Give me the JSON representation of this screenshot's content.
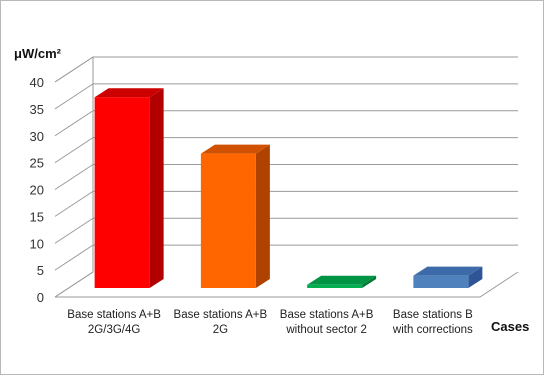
{
  "chart_data": {
    "type": "bar",
    "ylabel": "μW/cm²",
    "xlabel": "Cases",
    "ylim": [
      0,
      40
    ],
    "yticks": [
      0,
      5,
      10,
      15,
      20,
      25,
      30,
      35,
      40
    ],
    "grid": true,
    "categories": [
      [
        "Base stations A+B",
        "2G/3G/4G"
      ],
      [
        "Base stations A+B",
        "2G"
      ],
      [
        "Base stations A+B",
        "without sector 2"
      ],
      [
        "Base stations B",
        "with corrections"
      ]
    ],
    "values": [
      35.5,
      25.0,
      0.6,
      2.3
    ],
    "colors": [
      {
        "front": "#ff0000",
        "side": "#b20000",
        "top": "#cc0000"
      },
      {
        "front": "#ff6600",
        "side": "#b04200",
        "top": "#d05200"
      },
      {
        "front": "#00b050",
        "side": "#007a35",
        "top": "#009444"
      },
      {
        "front": "#4f81bd",
        "side": "#2f5597",
        "top": "#3d6aa8"
      }
    ]
  }
}
